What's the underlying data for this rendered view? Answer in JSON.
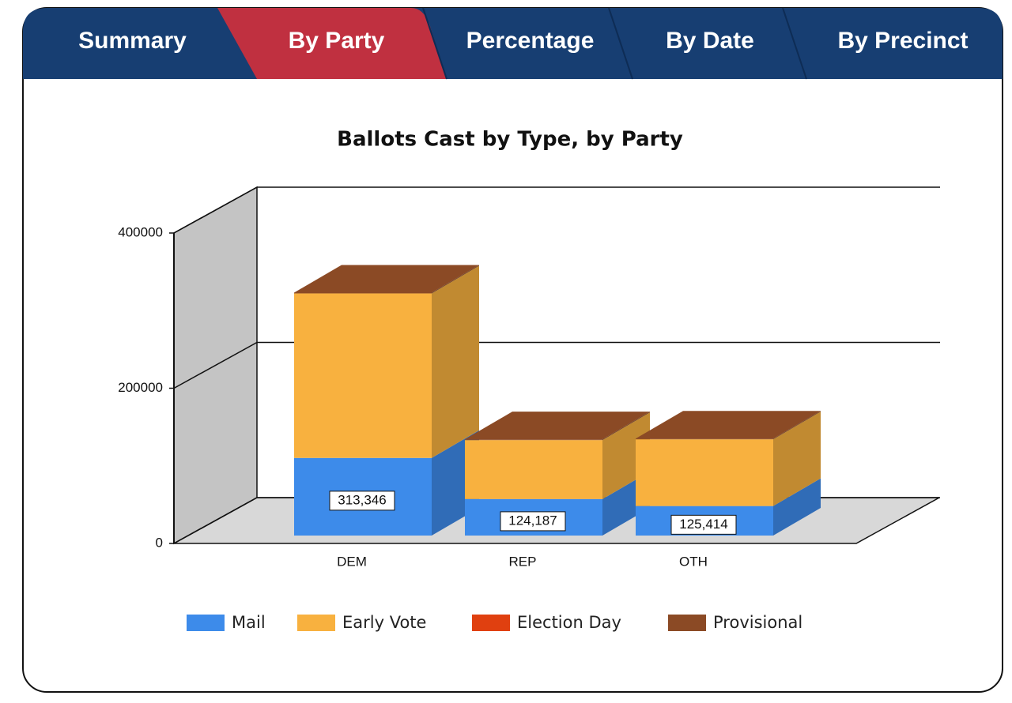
{
  "tabs": [
    "Summary",
    "By Party",
    "Percentage",
    "By Date",
    "By Precinct"
  ],
  "active_tab": 1,
  "chart_data": {
    "type": "bar3d_stacked",
    "title": "Ballots Cast by Type, by Party",
    "categories": [
      "DEM",
      "REP",
      "OTH"
    ],
    "series": [
      {
        "name": "Mail",
        "color": "#3d8bea",
        "values": [
          100000,
          47000,
          38000
        ]
      },
      {
        "name": "Early Vote",
        "color": "#f8b13f",
        "values": [
          212000,
          76000,
          86000
        ]
      },
      {
        "name": "Election Day",
        "color": "#e04010",
        "values": [
          0,
          0,
          0
        ]
      },
      {
        "name": "Provisional",
        "color": "#8b4a25",
        "values": [
          1000,
          1000,
          1000
        ]
      }
    ],
    "totals": [
      313346,
      124187,
      125414
    ],
    "total_labels": [
      "313,346",
      "124,187",
      "125,414"
    ],
    "ylim": [
      0,
      400000
    ],
    "yticks": [
      0,
      200000,
      400000
    ],
    "grid": true
  }
}
